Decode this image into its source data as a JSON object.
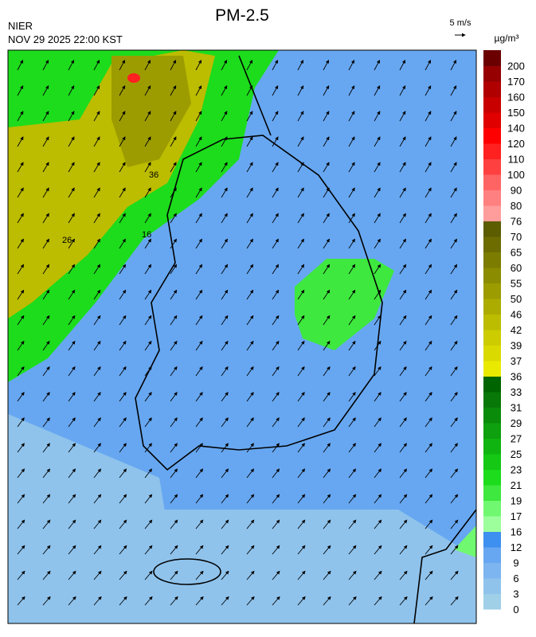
{
  "header": {
    "agency": "NIER",
    "timestamp": "NOV 29 2025 22:00 KST",
    "title": "PM-2.5"
  },
  "wind_scale": {
    "label": "5 m/s"
  },
  "legend": {
    "unit": "µg/m³",
    "levels": [
      {
        "label": "0",
        "color": "#a0cfe8"
      },
      {
        "label": "3",
        "color": "#8fc3ec"
      },
      {
        "label": "6",
        "color": "#7cb5ef"
      },
      {
        "label": "9",
        "color": "#67a7f1"
      },
      {
        "label": "12",
        "color": "#3d8ff0"
      },
      {
        "label": "16",
        "color": "#9cff9c"
      },
      {
        "label": "17",
        "color": "#70f870"
      },
      {
        "label": "19",
        "color": "#3ee83e"
      },
      {
        "label": "21",
        "color": "#1cdc1c"
      },
      {
        "label": "23",
        "color": "#14c814"
      },
      {
        "label": "25",
        "color": "#10b410"
      },
      {
        "label": "27",
        "color": "#0ea00e"
      },
      {
        "label": "29",
        "color": "#0a8c0a"
      },
      {
        "label": "31",
        "color": "#087808"
      },
      {
        "label": "33",
        "color": "#006400"
      },
      {
        "label": "36",
        "color": "#eaea00"
      },
      {
        "label": "37",
        "color": "#dada00"
      },
      {
        "label": "39",
        "color": "#cccc00"
      },
      {
        "label": "42",
        "color": "#bcbc00"
      },
      {
        "label": "46",
        "color": "#acac00"
      },
      {
        "label": "50",
        "color": "#9c9c00"
      },
      {
        "label": "55",
        "color": "#8c8c00"
      },
      {
        "label": "60",
        "color": "#7c7c00"
      },
      {
        "label": "65",
        "color": "#6c6c00"
      },
      {
        "label": "70",
        "color": "#5c5c00"
      },
      {
        "label": "76",
        "color": "#ff9c9c"
      },
      {
        "label": "80",
        "color": "#ff8080"
      },
      {
        "label": "90",
        "color": "#ff6464"
      },
      {
        "label": "100",
        "color": "#ff4040"
      },
      {
        "label": "110",
        "color": "#ff2020"
      },
      {
        "label": "120",
        "color": "#ff0000"
      },
      {
        "label": "140",
        "color": "#e00000"
      },
      {
        "label": "150",
        "color": "#c80000"
      },
      {
        "label": "160",
        "color": "#b00000"
      },
      {
        "label": "170",
        "color": "#960000"
      },
      {
        "label": "200",
        "color": "#6b0000"
      }
    ]
  },
  "contours": [
    {
      "label": "36"
    },
    {
      "label": "26"
    },
    {
      "label": "16"
    }
  ]
}
